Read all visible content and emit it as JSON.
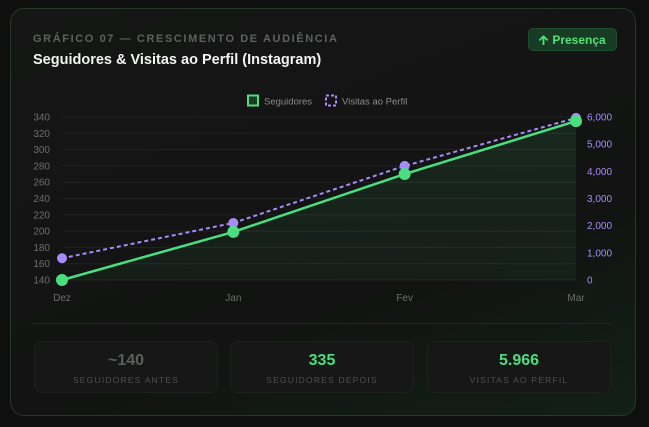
{
  "header": {
    "eyebrow": "GRÁFICO 07 — CRESCIMENTO DE AUDIÊNCIA",
    "title": "Seguidores & Visitas ao Perfil (Instagram)",
    "badge": "Presença",
    "badge_icon": "arrow-up-icon"
  },
  "chart_data": {
    "type": "line",
    "categories": [
      "Dez",
      "Jan",
      "Fev",
      "Mar"
    ],
    "series": [
      {
        "name": "Seguidores",
        "values": [
          140,
          199,
          270,
          335
        ],
        "axis": "left",
        "color": "#4ade80",
        "style": "solid",
        "fill": true
      },
      {
        "name": "Visitas ao Perfil",
        "values": [
          800,
          2100,
          4200,
          5966
        ],
        "axis": "right",
        "color": "#a78bfa",
        "style": "dashed",
        "fill": false
      }
    ],
    "y_left": {
      "min": 140,
      "max": 340,
      "ticks": [
        "140",
        "160",
        "180",
        "200",
        "220",
        "240",
        "260",
        "280",
        "300",
        "320",
        "340"
      ]
    },
    "y_right": {
      "min": 0,
      "max": 6000,
      "ticks": [
        "0",
        "1,000",
        "2,000",
        "3,000",
        "4,000",
        "5,000",
        "6,000"
      ]
    },
    "legend_position": "top-center",
    "grid": true
  },
  "stats": [
    {
      "value": "~140",
      "label": "SEGUIDORES ANTES",
      "color": "#5b5f5b"
    },
    {
      "value": "335",
      "label": "SEGUIDORES DEPOIS",
      "color": "#4ade80"
    },
    {
      "value": "5.966",
      "label": "VISITAS AO PERFIL",
      "color": "#4ade80"
    }
  ]
}
